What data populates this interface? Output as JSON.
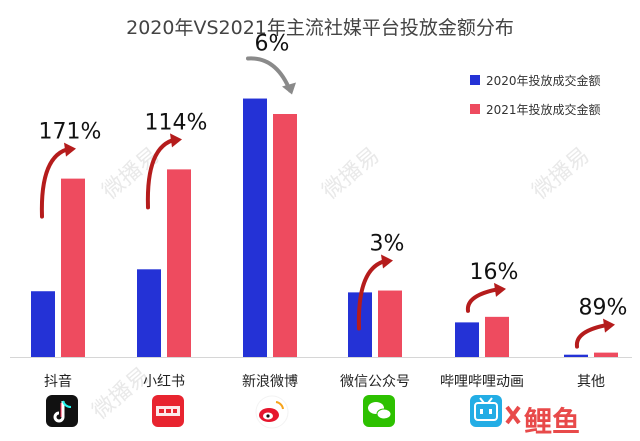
{
  "chart_data": {
    "type": "bar",
    "title": "2020年VS2021年主流社媒平台投放金额分布",
    "categories": [
      "抖音",
      "小红书",
      "新浪微博",
      "微信公众号",
      "哔哩哔哩动画",
      "其他"
    ],
    "series": [
      {
        "name": "2020年投放成交金额",
        "color": "#2432d6",
        "values": [
          28.5,
          38,
          112,
          28,
          15,
          1
        ]
      },
      {
        "name": "2021年投放成交金额",
        "color": "#ee4b5f",
        "values": [
          77.3,
          81.3,
          105.3,
          28.8,
          17.4,
          1.9
        ]
      }
    ],
    "growth_labels": [
      "171%",
      "114%",
      "6%",
      "3%",
      "16%",
      "89%"
    ],
    "growth_direction": [
      "up",
      "up",
      "down",
      "up",
      "up",
      "up"
    ],
    "legend_position": "top-right",
    "grid": false,
    "ylim": [
      0,
      130
    ],
    "arrow_colors": {
      "up": "#b51c1c",
      "down": "#8a8a8a"
    }
  },
  "app_icons": [
    "douyin-icon",
    "xiaohongshu-icon",
    "weibo-icon",
    "wechat-icon",
    "bilibili-icon"
  ],
  "brand": {
    "text": "鲤鱼",
    "color": "#e84a4a"
  },
  "watermark": {
    "text": "微播易"
  }
}
